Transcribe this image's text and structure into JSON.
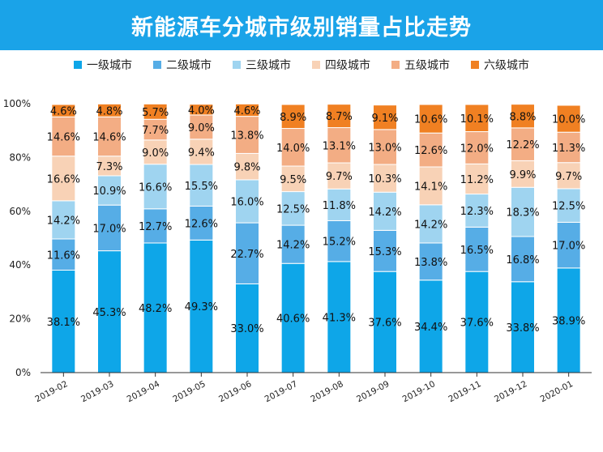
{
  "header": {
    "title": "新能源车分城市级别销量占比走势"
  },
  "chart_data": {
    "type": "bar",
    "stacked": true,
    "title": "新能源车分城市级别销量占比走势",
    "categories": [
      "2019-02",
      "2019-03",
      "2019-04",
      "2019-05",
      "2019-06",
      "2019-07",
      "2019-08",
      "2019-09",
      "2019-10",
      "2019-11",
      "2019-12",
      "2020-01"
    ],
    "series": [
      {
        "name": "一级城市",
        "color": "#0ea6e8",
        "values": [
          38.1,
          45.3,
          48.2,
          49.3,
          33.0,
          40.6,
          41.3,
          37.6,
          34.4,
          37.6,
          33.8,
          38.9
        ]
      },
      {
        "name": "二级城市",
        "color": "#56ade6",
        "values": [
          11.6,
          17.0,
          12.7,
          12.6,
          22.7,
          14.2,
          15.2,
          15.3,
          13.8,
          16.5,
          16.8,
          17.0
        ]
      },
      {
        "name": "三级城市",
        "color": "#9fd4f0",
        "values": [
          14.2,
          10.9,
          16.6,
          15.5,
          16.0,
          12.5,
          11.8,
          14.2,
          14.2,
          12.3,
          18.3,
          12.5
        ]
      },
      {
        "name": "四级城市",
        "color": "#f8d2b6",
        "values": [
          16.6,
          7.3,
          9.0,
          9.4,
          9.8,
          9.5,
          9.7,
          10.3,
          14.1,
          11.2,
          9.9,
          9.7
        ]
      },
      {
        "name": "五级城市",
        "color": "#f3ad84",
        "values": [
          14.6,
          14.6,
          7.7,
          9.0,
          13.8,
          14.0,
          13.1,
          13.0,
          12.6,
          12.0,
          12.2,
          11.3
        ]
      },
      {
        "name": "六级城市",
        "color": "#f08022",
        "values": [
          4.6,
          4.8,
          5.7,
          4.0,
          4.6,
          8.9,
          8.7,
          9.1,
          10.6,
          10.1,
          8.8,
          10.0
        ]
      }
    ],
    "y_ticks": [
      "0%",
      "20%",
      "40%",
      "60%",
      "80%",
      "100%"
    ],
    "ylim": [
      0,
      100
    ],
    "grid": false,
    "legend_position": "top"
  }
}
